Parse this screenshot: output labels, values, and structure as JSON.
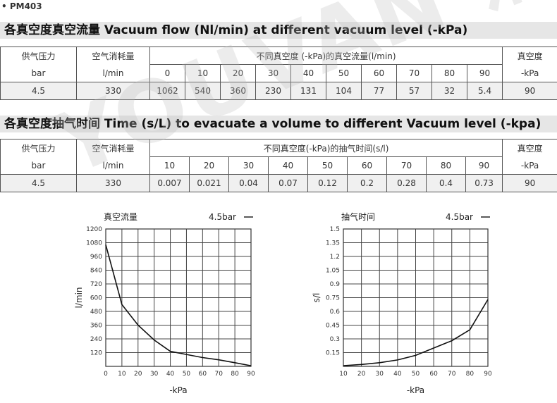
{
  "model_code": "• PM403",
  "watermark": "YOUVAN 油研流体",
  "flow_section": {
    "title": "各真空度真空流量 Vacuum flow (Nl/min) at different vacuum level (-kPa)",
    "h_pressure_1": "供气压力",
    "h_pressure_2": "bar",
    "h_air_1": "空气消耗量",
    "h_air_2": "l/min",
    "h_group": "不同真空度 (-kPa)的真空流量(l/min)",
    "h_vac_1": "真空度",
    "h_vac_2": "-kPa",
    "levels": [
      "0",
      "10",
      "20",
      "30",
      "40",
      "50",
      "60",
      "70",
      "80",
      "90"
    ],
    "pressure": "4.5",
    "air": "330",
    "values": [
      "1062",
      "540",
      "360",
      "230",
      "131",
      "104",
      "77",
      "57",
      "32",
      "5.4"
    ],
    "vacuum": "90"
  },
  "time_section": {
    "title": "各真空度抽气时间 Time (s/L) to evacuate a volume to different Vacuum level (-kpa)",
    "h_pressure_1": "供气压力",
    "h_pressure_2": "bar",
    "h_air_1": "空气消耗量",
    "h_air_2": "l/min",
    "h_group": "不同真空度(-kPa)的抽气时间(s/l)",
    "h_vac_1": "真空度",
    "h_vac_2": "-kPa",
    "levels": [
      "10",
      "20",
      "30",
      "40",
      "50",
      "60",
      "70",
      "80",
      "90"
    ],
    "pressure": "4.5",
    "air": "330",
    "values": [
      "0.007",
      "0.021",
      "0.04",
      "0.07",
      "0.12",
      "0.2",
      "0.28",
      "0.4",
      "0.73"
    ],
    "vacuum": "90"
  },
  "chart_data": [
    {
      "type": "line",
      "title": "真空流量",
      "legend": "4.5bar",
      "xlabel": "-kPa",
      "ylabel": "l/min",
      "xlim": [
        0,
        90
      ],
      "ylim": [
        0,
        1200
      ],
      "xticks": [
        0,
        10,
        20,
        30,
        40,
        50,
        60,
        70,
        80,
        90
      ],
      "yticks": [
        120,
        240,
        360,
        480,
        600,
        720,
        840,
        960,
        1080,
        1200
      ],
      "series": [
        {
          "x": [
            0,
            10,
            20,
            30,
            40,
            50,
            60,
            70,
            80,
            90
          ],
          "y": [
            1062,
            540,
            360,
            230,
            131,
            104,
            77,
            57,
            32,
            5.4
          ]
        }
      ]
    },
    {
      "type": "line",
      "title": "抽气时间",
      "legend": "4.5bar",
      "xlabel": "-kPa",
      "ylabel": "s/l",
      "xlim": [
        10,
        90
      ],
      "ylim": [
        0,
        1.5
      ],
      "xticks": [
        10,
        20,
        30,
        40,
        50,
        60,
        70,
        80,
        90
      ],
      "yticks": [
        0.15,
        0.3,
        0.45,
        0.6,
        0.75,
        0.9,
        1.05,
        1.2,
        1.35,
        1.5
      ],
      "series": [
        {
          "x": [
            10,
            20,
            30,
            40,
            50,
            60,
            70,
            80,
            90
          ],
          "y": [
            0.007,
            0.021,
            0.04,
            0.07,
            0.12,
            0.2,
            0.28,
            0.4,
            0.73
          ]
        }
      ]
    }
  ]
}
